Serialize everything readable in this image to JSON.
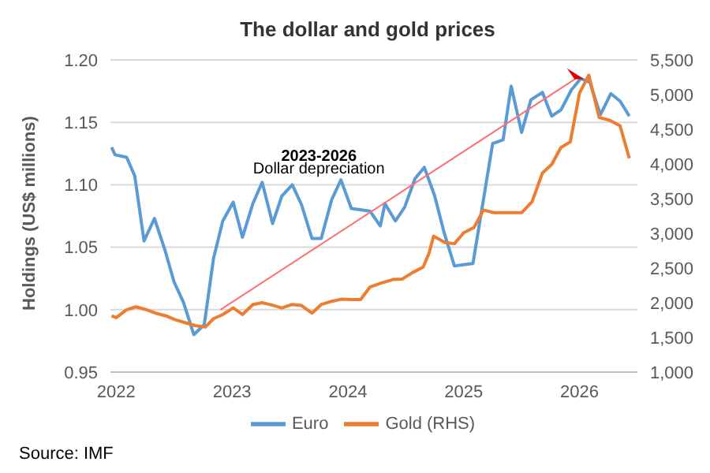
{
  "chart_data": {
    "type": "line",
    "title": "The dollar and gold prices",
    "ylabel": "Holdings (US$ millions)",
    "annotations": [
      "2023-2026",
      "Dollar depreciation",
      "Source: IMF"
    ],
    "xlim": [
      2021.95,
      2026.5
    ],
    "xticks": [
      2022,
      2023,
      2024,
      2025,
      2026
    ],
    "ylim": [
      0.95,
      1.2
    ],
    "yticks": [
      {
        "value": 0.95,
        "label": "0.95"
      },
      {
        "value": 1,
        "label": "1.00"
      },
      {
        "value": 1.05,
        "label": "1.05"
      },
      {
        "value": 1.1,
        "label": "1.10"
      },
      {
        "value": 1.15,
        "label": "1.15"
      },
      {
        "value": 1.2,
        "label": "1.20"
      }
    ],
    "y2lim": [
      1000,
      5500
    ],
    "y2ticks": [
      {
        "value": 1000,
        "label": "1,000"
      },
      {
        "value": 1500,
        "label": "1,500"
      },
      {
        "value": 2000,
        "label": "2,000"
      },
      {
        "value": 2500,
        "label": "2,500"
      },
      {
        "value": 3000,
        "label": "3,000"
      },
      {
        "value": 3500,
        "label": "3,500"
      },
      {
        "value": 4000,
        "label": "4,000"
      },
      {
        "value": 4500,
        "label": "4,500"
      },
      {
        "value": 5000,
        "label": "5,000"
      },
      {
        "value": 5500,
        "label": "5,500"
      }
    ],
    "grid": "y",
    "legend": "bottom",
    "marker": "none",
    "line_style": "solid",
    "series": [
      {
        "name": "Euro",
        "color": "#5b9bd5",
        "x": [
          2021.96,
          2021.99,
          2022.09,
          2022.16,
          2022.24,
          2022.33,
          2022.42,
          2022.5,
          2022.58,
          2022.67,
          2022.76,
          2022.84,
          2022.92,
          2023.01,
          2023.09,
          2023.18,
          2023.26,
          2023.35,
          2023.43,
          2023.52,
          2023.6,
          2023.69,
          2023.77,
          2023.86,
          2023.94,
          2024.03,
          2024.19,
          2024.28,
          2024.32,
          2024.41,
          2024.49,
          2024.58,
          2024.66,
          2024.75,
          2024.83,
          2024.92,
          2025.0,
          2025.08,
          2025.25,
          2025.34,
          2025.41,
          2025.5,
          2025.58,
          2025.68,
          2025.76,
          2025.84,
          2025.93,
          2026.01,
          2026.09,
          2026.18,
          2026.27,
          2026.35,
          2026.43
        ],
        "values": [
          1.13,
          1.124,
          1.122,
          1.107,
          1.055,
          1.073,
          1.048,
          1.022,
          1.006,
          0.98,
          0.988,
          1.041,
          1.071,
          1.086,
          1.058,
          1.085,
          1.102,
          1.069,
          1.091,
          1.1,
          1.084,
          1.057,
          1.057,
          1.088,
          1.104,
          1.081,
          1.079,
          1.067,
          1.085,
          1.071,
          1.082,
          1.105,
          1.114,
          1.091,
          1.062,
          1.035,
          1.036,
          1.037,
          1.133,
          1.136,
          1.179,
          1.142,
          1.168,
          1.174,
          1.155,
          1.16,
          1.176,
          1.185,
          1.182,
          1.156,
          1.173,
          1.167,
          1.155
        ]
      },
      {
        "name": "Gold (RHS)",
        "color": "#ed7d31",
        "axis": "y2",
        "x": [
          2021.96,
          2022.0,
          2022.09,
          2022.17,
          2022.26,
          2022.34,
          2022.43,
          2022.51,
          2022.6,
          2022.68,
          2022.77,
          2022.84,
          2022.92,
          2023.01,
          2023.09,
          2023.18,
          2023.26,
          2023.35,
          2023.43,
          2023.52,
          2023.6,
          2023.69,
          2023.77,
          2023.86,
          2023.94,
          2024.03,
          2024.11,
          2024.19,
          2024.28,
          2024.39,
          2024.47,
          2024.56,
          2024.65,
          2024.7,
          2024.74,
          2024.84,
          2024.92,
          2025.0,
          2025.09,
          2025.17,
          2025.26,
          2025.5,
          2025.59,
          2025.68,
          2025.76,
          2025.84,
          2025.92,
          2026.0,
          2026.08,
          2026.17,
          2026.26,
          2026.35,
          2026.43
        ],
        "values": [
          1810,
          1785,
          1900,
          1940,
          1900,
          1850,
          1810,
          1755,
          1710,
          1670,
          1650,
          1770,
          1830,
          1925,
          1830,
          1975,
          2000,
          1965,
          1925,
          1975,
          1960,
          1850,
          1975,
          2020,
          2050,
          2045,
          2045,
          2225,
          2280,
          2334,
          2342,
          2436,
          2514,
          2710,
          2960,
          2867,
          2851,
          3008,
          3086,
          3337,
          3298,
          3298,
          3455,
          3870,
          3995,
          4238,
          4317,
          5022,
          5281,
          4669,
          4630,
          4552,
          4082
        ]
      }
    ]
  }
}
